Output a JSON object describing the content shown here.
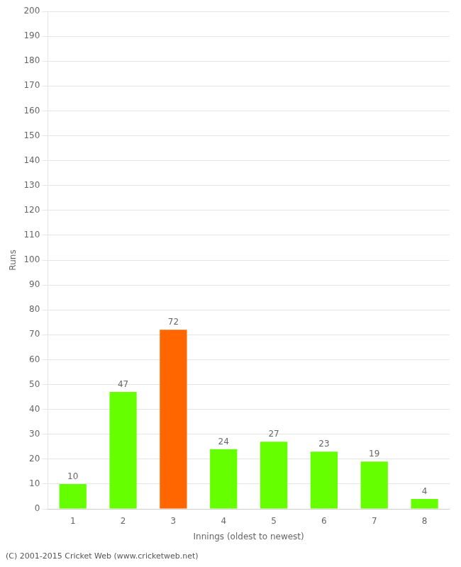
{
  "chart_data": {
    "type": "bar",
    "categories": [
      "1",
      "2",
      "3",
      "4",
      "5",
      "6",
      "7",
      "8"
    ],
    "values": [
      10,
      47,
      72,
      24,
      27,
      23,
      19,
      4
    ],
    "colors": [
      "#66ff00",
      "#66ff00",
      "#ff6600",
      "#66ff00",
      "#66ff00",
      "#66ff00",
      "#66ff00",
      "#66ff00"
    ],
    "xlabel": "Innings (oldest to newest)",
    "ylabel": "Runs",
    "ylim": [
      0,
      200
    ],
    "yticks": [
      0,
      10,
      20,
      30,
      40,
      50,
      60,
      70,
      80,
      90,
      100,
      110,
      120,
      130,
      140,
      150,
      160,
      170,
      180,
      190,
      200
    ],
    "grid": true,
    "data_labels": true,
    "annotations": [
      "(C) 2001-2015 Cricket Web (www.cricketweb.net)"
    ]
  }
}
